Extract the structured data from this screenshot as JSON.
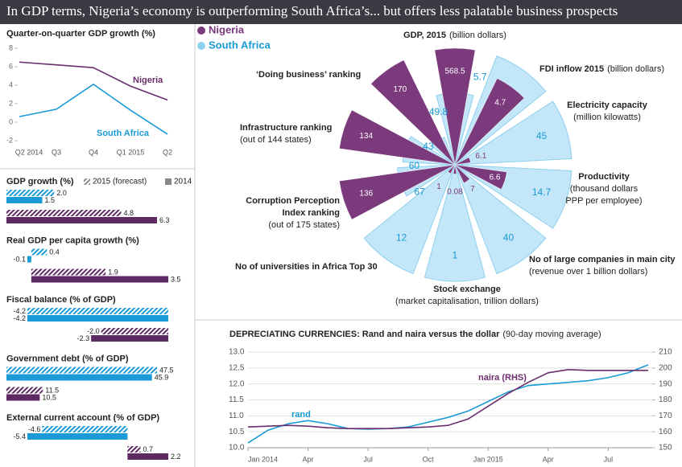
{
  "title": "In GDP terms, Nigeria’s economy is outperforming South Africa’s... but offers less palatable business prospects",
  "chart_data": [
    {
      "type": "line",
      "title": "Quarter-on-quarter GDP growth (%)",
      "categories": [
        "Q2 2014",
        "Q3",
        "Q4",
        "Q1 2015",
        "Q2"
      ],
      "series": [
        {
          "name": "Nigeria",
          "color": "#6b2d6b",
          "values": [
            6.5,
            6.2,
            5.9,
            3.9,
            2.4
          ]
        },
        {
          "name": "South Africa",
          "color": "#1a9ad6",
          "values": [
            0.6,
            1.4,
            4.1,
            1.3,
            -1.3
          ]
        }
      ],
      "ylim": [
        -2,
        8
      ],
      "yticks": [
        -2,
        0,
        2,
        4,
        6,
        8
      ]
    },
    {
      "type": "hbar",
      "categories": [
        "GDP growth (%)",
        "Real GDP per capita growth (%)",
        "Fiscal balance (% of GDP)",
        "Government debt (% of GDP)",
        "External current account (% of GDP)"
      ],
      "colors": [
        "#1a9ad6",
        "#5e2a63"
      ],
      "series": [
        {
          "name": "2015 (forecast)",
          "hatch": true,
          "values": [
            [
              2.0,
              4.8
            ],
            [
              0.4,
              1.9
            ],
            [
              -4.2,
              -2.0
            ],
            [
              47.5,
              11.5
            ],
            [
              -4.6,
              0.7
            ]
          ],
          "value_labels": [
            [
              "2.0",
              "4.8"
            ],
            [
              "0.4",
              "1.9"
            ],
            [
              "-4.2",
              "-2.0"
            ],
            [
              "47.5",
              "11.5"
            ],
            [
              "-4.6",
              "0.7"
            ]
          ]
        },
        {
          "name": "2014",
          "hatch": false,
          "values": [
            [
              1.5,
              6.3
            ],
            [
              -0.1,
              3.5
            ],
            [
              -4.2,
              -2.3
            ],
            [
              45.9,
              10.5
            ],
            [
              -5.4,
              2.2
            ]
          ],
          "value_labels": [
            [
              "1.5",
              "6.3"
            ],
            [
              "-0.1",
              "3.5"
            ],
            [
              "-4.2",
              "-2.3"
            ],
            [
              "45.9",
              "10.5"
            ],
            [
              "-5.4",
              "2.2"
            ]
          ]
        }
      ]
    },
    {
      "type": "radial",
      "categories": [
        {
          "label": [
            "GDP, 2015"
          ],
          "note": [
            "(billion dollars)"
          ]
        },
        {
          "label": [
            "FDI inflow 2015"
          ],
          "note": [
            "(billion dollars)"
          ]
        },
        {
          "label": [
            "Electricity capacity"
          ],
          "note": [
            "(million kilowatts)"
          ]
        },
        {
          "label": [
            "Productivity"
          ],
          "note": [
            "(thousand dollars",
            "PPP per employee)"
          ]
        },
        {
          "label": [
            "No of large companies in main city"
          ],
          "note": [
            "(revenue over 1 billion dollars)"
          ]
        },
        {
          "label": [
            "Stock exchange"
          ],
          "note": [
            "(market capitalisation, trillion dollars)"
          ]
        },
        {
          "label": [
            "No of universities in Africa Top 30"
          ],
          "note": []
        },
        {
          "label": [
            "Corruption Perception",
            "Index ranking"
          ],
          "note": [
            "(out of 175 states)"
          ]
        },
        {
          "label": [
            "Infrastructure ranking"
          ],
          "note": [
            "(out of 144 states)"
          ]
        },
        {
          "label": [
            "‘Doing business’ ranking"
          ],
          "note": []
        }
      ],
      "series": [
        {
          "name": "Nigeria",
          "color": "#7b3a7c",
          "values": [
            568.5,
            4.7,
            6.1,
            6.6,
            7,
            0.08,
            1,
            136,
            134,
            170
          ]
        },
        {
          "name": "South Africa",
          "color": "#c3e7f8",
          "values": [
            349.8,
            5.7,
            45,
            14.7,
            40,
            1,
            12,
            67,
            60,
            43
          ]
        }
      ]
    },
    {
      "type": "line",
      "title": "DEPRECIATING CURRENCIES: Rand and naira versus the dollar",
      "subtitle": "(90-day moving average)",
      "x": [
        0,
        1,
        2,
        3,
        4,
        5,
        6,
        7,
        8,
        9,
        10,
        11,
        12,
        13,
        14,
        15,
        16,
        17,
        18,
        19,
        20
      ],
      "xlim": [
        0,
        20.2
      ],
      "xticks": [
        {
          "value": 0,
          "label": "Jan 2014"
        },
        {
          "value": 3,
          "label": "Apr"
        },
        {
          "value": 6,
          "label": "Jul"
        },
        {
          "value": 9,
          "label": "Oct"
        },
        {
          "value": 12,
          "label": "Jan 2015"
        },
        {
          "value": 15,
          "label": "Apr"
        },
        {
          "value": 18,
          "label": "Jul"
        }
      ],
      "series": [
        {
          "name": "rand",
          "color": "#1a9ad6",
          "values": [
            10.15,
            10.55,
            10.75,
            10.85,
            10.75,
            10.6,
            10.58,
            10.6,
            10.65,
            10.8,
            10.95,
            11.15,
            11.45,
            11.75,
            11.95,
            12.0,
            12.05,
            12.1,
            12.2,
            12.35,
            12.6
          ]
        },
        {
          "name": "naira (RHS)",
          "color": "#6b2d6b",
          "axis": "y2",
          "values": [
            163,
            163.5,
            164,
            163.5,
            162.5,
            162,
            162,
            162,
            162.5,
            163,
            164,
            168,
            176,
            184,
            191,
            197,
            199,
            198.5,
            198.5,
            198.5,
            198.5
          ]
        }
      ],
      "ylim": [
        10,
        13
      ],
      "yticks": [
        {
          "value": 10,
          "label": "10.0"
        },
        {
          "value": 10.5,
          "label": "10.5"
        },
        {
          "value": 11,
          "label": "11.0"
        },
        {
          "value": 11.5,
          "label": "11.5"
        },
        {
          "value": 12,
          "label": "12.0"
        },
        {
          "value": 12.5,
          "label": "12.5"
        },
        {
          "value": 13,
          "label": "13.0"
        }
      ],
      "y2lim": [
        150,
        210
      ],
      "y2ticks": [
        150,
        160,
        170,
        180,
        190,
        200,
        210
      ],
      "grid": true
    }
  ]
}
